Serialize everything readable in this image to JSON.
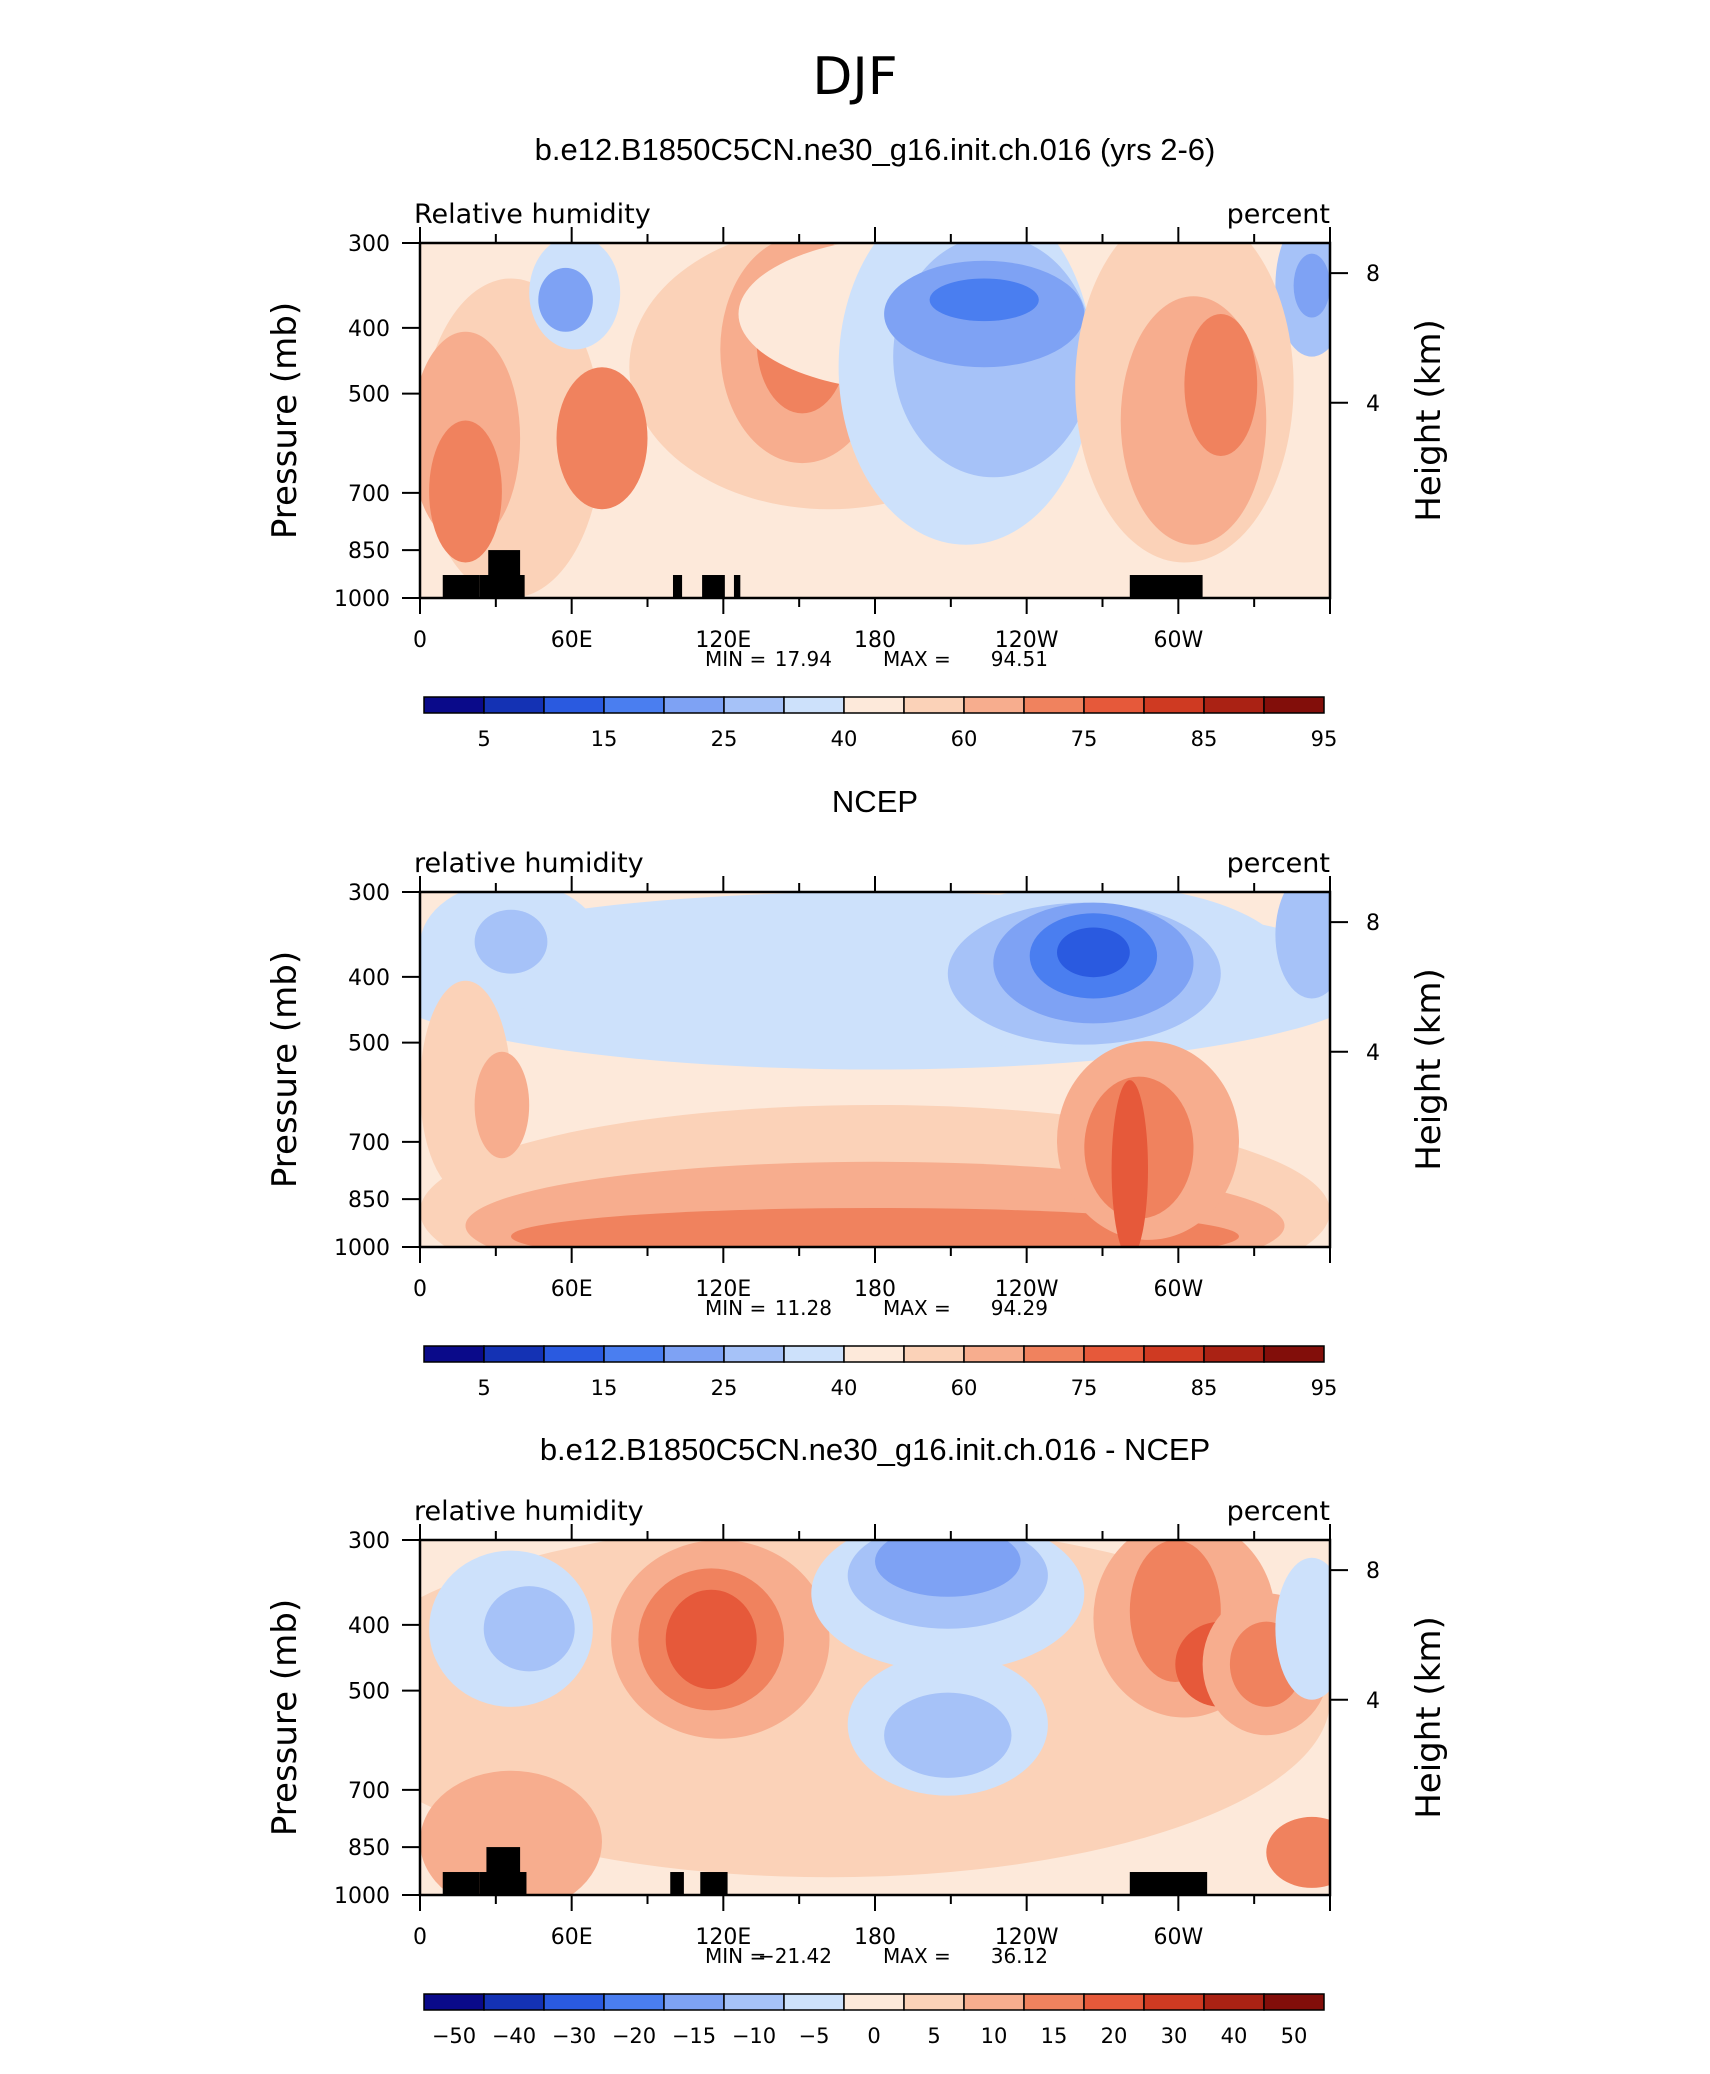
{
  "figure_title": "DJF",
  "colors": {
    "absolute_scale": [
      "#0a0a8a",
      "#1432b4",
      "#2a5ae0",
      "#4a7ef0",
      "#7ea2f4",
      "#a6c2f8",
      "#cde1fb",
      "#fde9da",
      "#fbd2b8",
      "#f7ad8e",
      "#f0825e",
      "#e6593a",
      "#cf3a22",
      "#aa2214",
      "#820e0a"
    ],
    "land_mask": "#000000"
  },
  "chart_data": [
    {
      "type": "heatmap",
      "title": "b.e12.B1850C5CN.ne30_g16.init.ch.016 (yrs 2-6)",
      "left_label": "Relative humidity",
      "right_label": "percent",
      "ylabel": "Pressure (mb)",
      "ylabel_right": "Height (km)",
      "xticks": [
        "0",
        "60E",
        "120E",
        "180",
        "120W",
        "60W"
      ],
      "yticks": [
        "300",
        "400",
        "500",
        "700",
        "850",
        "1000"
      ],
      "yticks_right": [
        "8",
        "4"
      ],
      "min_label": "MIN =",
      "min_value": "17.94",
      "max_label": "MAX =",
      "max_value": "94.51",
      "colorbar_labels": [
        "5",
        "15",
        "25",
        "40",
        "60",
        "75",
        "85",
        "95"
      ],
      "fill_style": "absolute",
      "has_land": true
    },
    {
      "type": "heatmap",
      "title": "NCEP",
      "left_label": "relative humidity",
      "right_label": "percent",
      "ylabel": "Pressure (mb)",
      "ylabel_right": "Height (km)",
      "xticks": [
        "0",
        "60E",
        "120E",
        "180",
        "120W",
        "60W"
      ],
      "yticks": [
        "300",
        "400",
        "500",
        "700",
        "850",
        "1000"
      ],
      "yticks_right": [
        "8",
        "4"
      ],
      "min_label": "MIN =",
      "min_value": "11.28",
      "max_label": "MAX =",
      "max_value": "94.29",
      "colorbar_labels": [
        "5",
        "15",
        "25",
        "40",
        "60",
        "75",
        "85",
        "95"
      ],
      "fill_style": "absolute",
      "has_land": false
    },
    {
      "type": "heatmap",
      "title": "b.e12.B1850C5CN.ne30_g16.init.ch.016 - NCEP",
      "left_label": "relative humidity",
      "right_label": "percent",
      "ylabel": "Pressure (mb)",
      "ylabel_right": "Height (km)",
      "xticks": [
        "0",
        "60E",
        "120E",
        "180",
        "120W",
        "60W"
      ],
      "yticks": [
        "300",
        "400",
        "500",
        "700",
        "850",
        "1000"
      ],
      "yticks_right": [
        "8",
        "4"
      ],
      "min_label": "MIN =",
      "min_value": "−21.42",
      "max_label": "MAX =",
      "max_value": "36.12",
      "colorbar_labels": [
        "−50",
        "−40",
        "−30",
        "−20",
        "−15",
        "−10",
        "−5",
        "0",
        "5",
        "10",
        "15",
        "20",
        "30",
        "40",
        "50"
      ],
      "fill_style": "difference",
      "has_land": true
    }
  ]
}
